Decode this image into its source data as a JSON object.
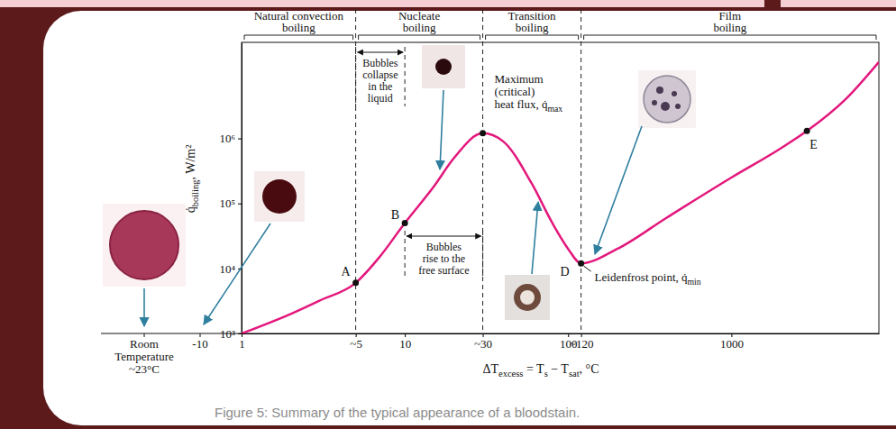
{
  "chart_data": {
    "type": "line",
    "caption": "Figure 5: Summary of the typical appearance of a bloodstain.",
    "log": true,
    "grid": false,
    "color": "#e3177c",
    "xlim": [
      1,
      8000
    ],
    "ylim": [
      1000,
      30000000
    ],
    "xticks": [
      1,
      {
        "value": 5,
        "label": "~5"
      },
      10,
      {
        "value": 30,
        "label": "~30"
      },
      100,
      {
        "value": 120,
        "label": "~120"
      },
      1000
    ],
    "yticks": [
      {
        "value": 1000,
        "label": "10³"
      },
      {
        "value": 10000,
        "label": "10⁴"
      },
      {
        "value": 100000,
        "label": "10⁵"
      },
      {
        "value": 1000000,
        "label": "10⁶"
      }
    ],
    "xlabel": [
      {
        "text": "ΔT"
      },
      {
        "text": "excess",
        "sub": true
      },
      {
        "text": " = T"
      },
      {
        "text": "s",
        "sub": true
      },
      {
        "text": " − T"
      },
      {
        "text": "sat",
        "sub": true
      },
      {
        "text": ", °C"
      }
    ],
    "ylabel": [
      {
        "text": "q̇"
      },
      {
        "text": "boiling",
        "sub": true
      },
      {
        "text": ", W/m²"
      }
    ],
    "x": [
      1,
      2,
      3,
      5,
      7,
      10,
      15,
      20,
      30,
      40,
      60,
      80,
      100,
      120,
      200,
      400,
      1000,
      2000,
      2900,
      5000,
      8000
    ],
    "values": [
      1000,
      2000,
      3200,
      6000,
      15000,
      50000,
      180000,
      500000,
      1200000,
      900000,
      200000,
      50000,
      20000,
      12000,
      20000,
      60000,
      250000,
      700000,
      1300000,
      4000000,
      15000000
    ],
    "regions": [
      {
        "label": [
          "Natural convection",
          "boiling"
        ],
        "range": [
          1,
          5
        ]
      },
      {
        "label": [
          "Nucleate",
          "boiling"
        ],
        "range": [
          5,
          30
        ]
      },
      {
        "label": [
          "Transition",
          "boiling"
        ],
        "range": [
          30,
          120
        ]
      },
      {
        "label": [
          "Film",
          "boiling"
        ],
        "range": [
          120,
          8000
        ]
      }
    ],
    "brackets": [
      {
        "lines": [
          "Bubbles",
          "collapse",
          "in the",
          "liquid"
        ],
        "range": [
          5,
          10
        ]
      },
      {
        "lines": [
          "Bubbles",
          "rise to the",
          "free surface"
        ],
        "range": [
          10,
          30
        ]
      }
    ],
    "points": [
      {
        "label": "A",
        "x": 5,
        "y": 6000
      },
      {
        "label": "B",
        "x": 10,
        "y": 50000
      },
      {
        "label": "D",
        "x": 120,
        "y": 12000
      },
      {
        "label": "E",
        "x": 2900,
        "y": 1300000
      }
    ],
    "annotations": [
      {
        "lines": [
          "Maximum",
          "(critical)",
          [
            {
              "text": "heat flux, q̇"
            },
            {
              "text": "max",
              "sub": true
            }
          ]
        ],
        "x": 30,
        "y": 1200000
      },
      {
        "lines": [
          [
            {
              "text": "Leidenfrost point, q̇"
            },
            {
              "text": "min",
              "sub": true
            }
          ]
        ],
        "x": 120,
        "y": 12000
      }
    ],
    "extension_ticks": [
      [
        "Room",
        "Temperature",
        "~23°C"
      ],
      -10
    ]
  }
}
